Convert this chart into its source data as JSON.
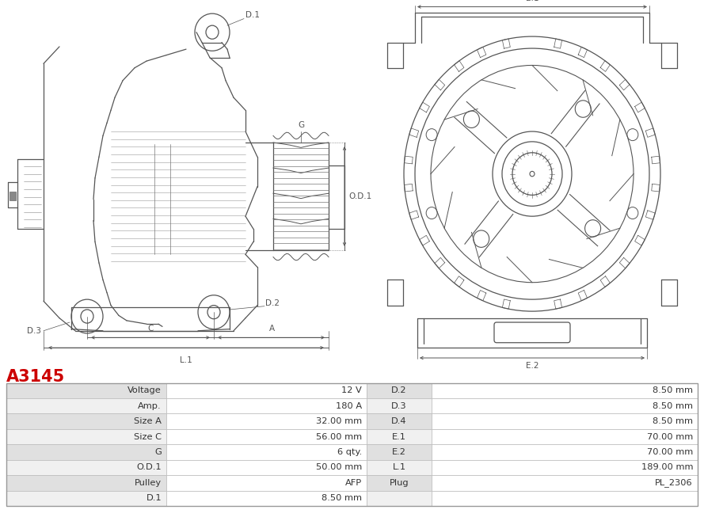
{
  "title": "A3145",
  "title_color": "#cc0000",
  "table_headers_left": [
    "Voltage",
    "Amp.",
    "Size A",
    "Size C",
    "G",
    "O.D.1",
    "Pulley",
    "D.1"
  ],
  "table_values_left": [
    "12 V",
    "180 A",
    "32.00 mm",
    "56.00 mm",
    "6 qty.",
    "50.00 mm",
    "AFP",
    "8.50 mm"
  ],
  "table_headers_right": [
    "D.2",
    "D.3",
    "D.4",
    "E.1",
    "E.2",
    "L.1",
    "Plug",
    ""
  ],
  "table_values_right": [
    "8.50 mm",
    "8.50 mm",
    "8.50 mm",
    "70.00 mm",
    "70.00 mm",
    "189.00 mm",
    "PL_2306",
    ""
  ],
  "bg_color": "#ffffff",
  "table_row_colors": [
    "#e0e0e0",
    "#f0f0f0"
  ],
  "border_color": "#bbbbbb",
  "text_color": "#333333",
  "line_color": "#555555",
  "dim_color": "#555555"
}
